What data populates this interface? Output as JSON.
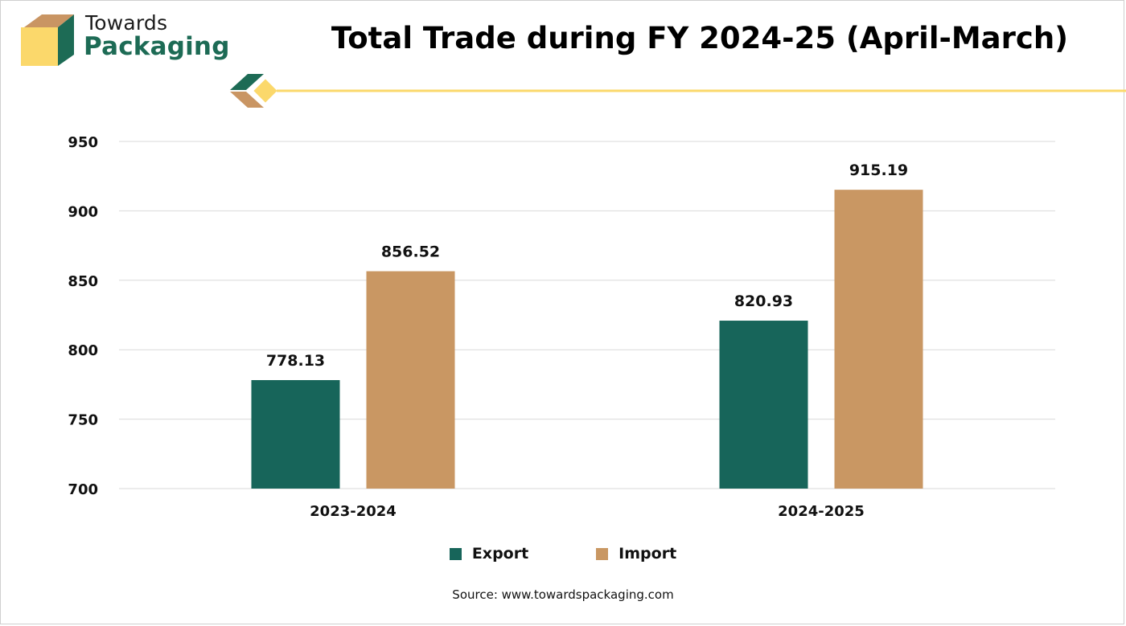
{
  "brand": {
    "word_1": "Towards",
    "word_2": "Packaging",
    "colors": {
      "green": "#1d6b55",
      "tan": "#c99563",
      "yellow": "#fbd86b"
    }
  },
  "chart_data": {
    "type": "bar",
    "title": "Total Trade during FY 2024-25 (April-March)",
    "categories": [
      "2023-2024",
      "2024-2025"
    ],
    "series": [
      {
        "name": "Export",
        "values": [
          778.13,
          820.93
        ],
        "color": "#17655a"
      },
      {
        "name": "Import",
        "values": [
          856.52,
          915.19
        ],
        "color": "#c99763"
      }
    ],
    "data_labels": [
      [
        "778.13",
        "820.93"
      ],
      [
        "856.52",
        "915.19"
      ]
    ],
    "ylim": [
      700,
      950
    ],
    "yticks": [
      700,
      750,
      800,
      850,
      900,
      950
    ],
    "grid": true,
    "legend_position": "bottom",
    "xlabel": "",
    "ylabel": ""
  },
  "source": "Source: www.towardspackaging.com"
}
